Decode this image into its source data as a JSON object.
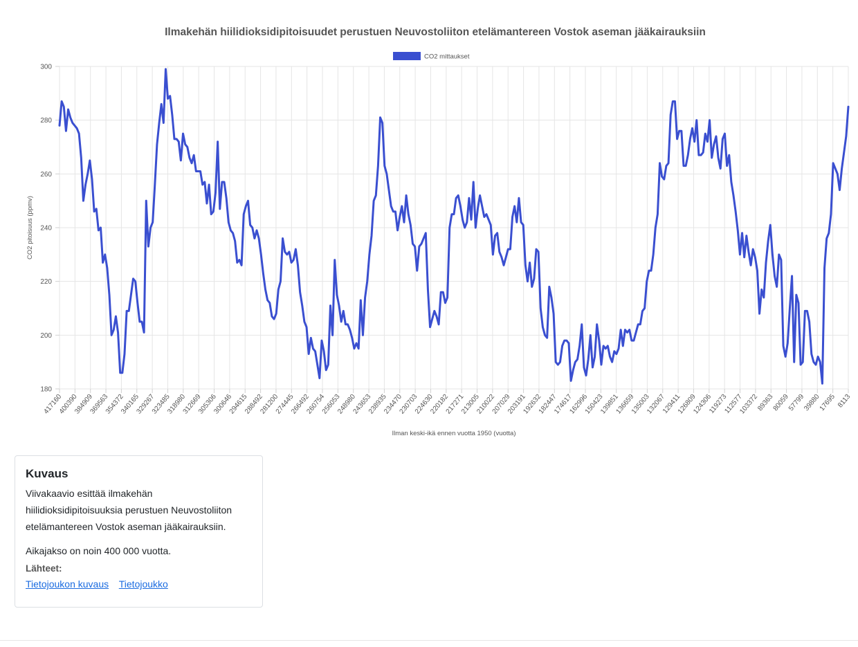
{
  "chart_data": {
    "type": "line",
    "title": "Ilmakehän hiilidioksidipitoisuudet perustuen Neuvostoliiton etelämantereen Vostok aseman jääkairauksiin",
    "xlabel": "Ilman keski-ikä ennen vuotta 1950 (vuotta)",
    "ylabel": "CO2 pitoisuus (ppmv)",
    "ylim": [
      180,
      300
    ],
    "yticks": [
      180,
      200,
      220,
      240,
      260,
      280,
      300
    ],
    "xtick_labels": [
      "417160",
      "400390",
      "384909",
      "369563",
      "354372",
      "340165",
      "329267",
      "323485",
      "318980",
      "312669",
      "305306",
      "300646",
      "294615",
      "288492",
      "281200",
      "274445",
      "266492",
      "260754",
      "256053",
      "248980",
      "243653",
      "238935",
      "234470",
      "230703",
      "224630",
      "220182",
      "217271",
      "213005",
      "210022",
      "207029",
      "203191",
      "192632",
      "182447",
      "174617",
      "162996",
      "150423",
      "139851",
      "136659",
      "135003",
      "132067",
      "129411",
      "126809",
      "124306",
      "119273",
      "112577",
      "103372",
      "89363",
      "80059",
      "57799",
      "39880",
      "17695",
      "8113"
    ],
    "grid": true,
    "legend_position": "top",
    "series": [
      {
        "name": "CO2 mittaukset",
        "color": "#3a4fd0",
        "values": [
          278,
          287,
          285,
          276,
          284,
          281,
          279,
          278,
          277,
          275,
          266,
          250,
          256,
          260,
          265,
          258,
          246,
          247,
          239,
          240,
          227,
          230,
          225,
          215,
          200,
          202,
          207,
          201,
          186,
          186,
          193,
          209,
          209,
          215,
          221,
          220,
          212,
          205,
          205,
          201,
          250,
          233,
          240,
          242,
          256,
          271,
          279,
          286,
          279,
          299,
          288,
          289,
          282,
          273,
          273,
          272,
          265,
          275,
          271,
          270,
          266,
          264,
          267,
          261,
          261,
          261,
          256,
          257,
          249,
          256,
          245,
          246,
          253,
          272,
          247,
          257,
          257,
          251,
          242,
          239,
          238,
          235,
          227,
          228,
          226,
          245,
          248,
          250,
          241,
          240,
          236,
          239,
          236,
          230,
          223,
          217,
          213,
          212,
          207,
          206,
          208,
          217,
          220,
          236,
          231,
          230,
          231,
          227,
          228,
          232,
          226,
          216,
          211,
          205,
          203,
          193,
          199,
          195,
          194,
          189,
          184,
          198,
          194,
          187,
          189,
          211,
          200,
          228,
          215,
          211,
          205,
          209,
          204,
          204,
          202,
          199,
          195,
          197,
          195,
          213,
          200,
          214,
          220,
          230,
          237,
          250,
          252,
          263,
          281,
          279,
          263,
          260,
          254,
          248,
          246,
          246,
          239,
          244,
          248,
          242,
          252,
          245,
          241,
          234,
          233,
          224,
          233,
          234,
          236,
          238,
          217,
          203,
          206,
          209,
          207,
          204,
          216,
          216,
          212,
          214,
          240,
          245,
          245,
          251,
          252,
          248,
          243,
          240,
          242,
          251,
          243,
          257,
          240,
          247,
          252,
          248,
          244,
          245,
          243,
          241,
          230,
          237,
          238,
          231,
          229,
          226,
          229,
          232,
          232,
          244,
          248,
          242,
          251,
          242,
          241,
          226,
          220,
          227,
          218,
          221,
          232,
          231,
          210,
          203,
          200,
          199,
          218,
          214,
          208,
          190,
          189,
          190,
          196,
          198,
          198,
          197,
          183,
          187,
          190,
          191,
          196,
          204,
          188,
          185,
          191,
          200,
          188,
          192,
          204,
          198,
          189,
          196,
          195,
          196,
          192,
          190,
          194,
          193,
          195,
          202,
          196,
          202,
          201,
          202,
          198,
          198,
          201,
          204,
          204,
          209,
          210,
          220,
          224,
          224,
          230,
          240,
          245,
          264,
          259,
          258,
          263,
          264,
          282,
          287,
          287,
          273,
          276,
          276,
          263,
          263,
          267,
          273,
          277,
          272,
          280,
          267,
          267,
          268,
          275,
          272,
          280,
          266,
          271,
          274,
          266,
          262,
          273,
          275,
          263,
          267,
          257,
          252,
          246,
          239,
          230,
          238,
          229,
          237,
          231,
          226,
          232,
          229,
          224,
          208,
          217,
          214,
          227,
          235,
          241,
          230,
          222,
          218,
          230,
          228,
          196,
          192,
          197,
          210,
          222,
          190,
          215,
          212,
          189,
          190,
          209,
          209,
          205,
          193,
          190,
          189,
          192,
          190,
          182,
          225,
          236,
          238,
          245,
          264,
          262,
          260,
          254,
          262,
          268,
          274,
          285
        ]
      }
    ]
  }
}
